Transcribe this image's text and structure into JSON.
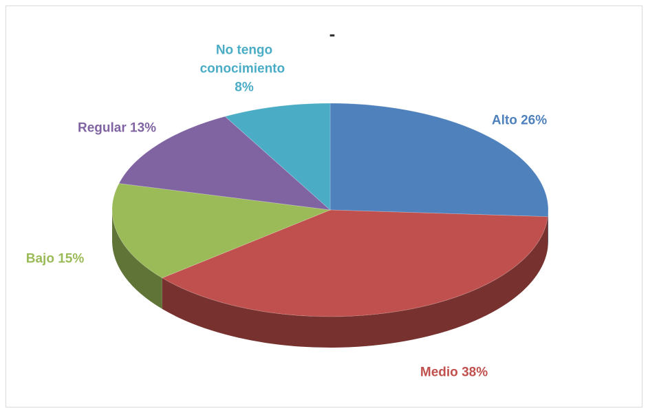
{
  "chart_data": {
    "type": "pie",
    "title": "-",
    "categories": [
      "Alto",
      "Medio",
      "Bajo",
      "Regular",
      "No tengo conocimiento"
    ],
    "values": [
      26,
      38,
      15,
      13,
      8
    ],
    "value_labels": [
      "26%",
      "38%",
      "15%",
      "13%",
      "8%"
    ],
    "colors": [
      "#4f81bd",
      "#c0504d",
      "#9bbb59",
      "#8064a2",
      "#4bacc6"
    ]
  }
}
